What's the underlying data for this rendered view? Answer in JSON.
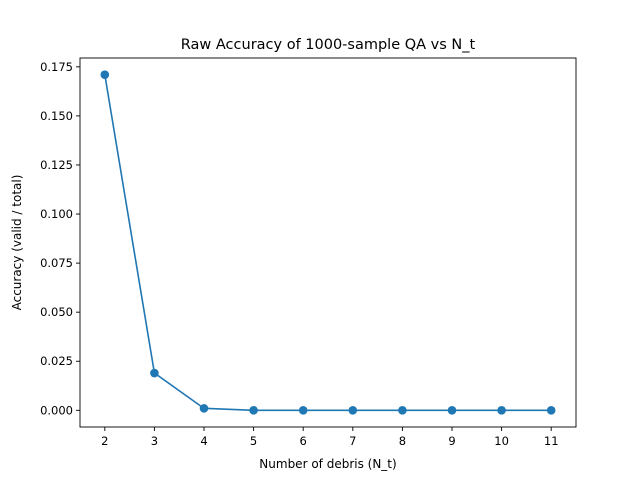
{
  "chart_data": {
    "type": "line",
    "title": "Raw Accuracy of 1000-sample QA vs N_t",
    "xlabel": "Number of debris (N_t)",
    "ylabel": "Accuracy (valid / total)",
    "x": [
      2,
      3,
      4,
      5,
      6,
      7,
      8,
      9,
      10,
      11
    ],
    "series": [
      {
        "values": [
          0.171,
          0.019,
          0.001,
          0.0,
          0.0,
          0.0,
          0.0,
          0.0,
          0.0,
          0.0
        ],
        "color": "#1f77b4",
        "marker": "circle"
      }
    ],
    "xlim": [
      1.5,
      11.5
    ],
    "ylim": [
      -0.0085,
      0.1795
    ],
    "xticks": [
      2,
      3,
      4,
      5,
      6,
      7,
      8,
      9,
      10,
      11
    ],
    "xtick_labels": [
      "2",
      "3",
      "4",
      "5",
      "6",
      "7",
      "8",
      "9",
      "10",
      "11"
    ],
    "yticks": [
      0.0,
      0.025,
      0.05,
      0.075,
      0.1,
      0.125,
      0.15,
      0.175
    ],
    "ytick_labels": [
      "0.000",
      "0.025",
      "0.050",
      "0.075",
      "0.100",
      "0.125",
      "0.150",
      "0.175"
    ],
    "grid": false,
    "legend": "none"
  }
}
